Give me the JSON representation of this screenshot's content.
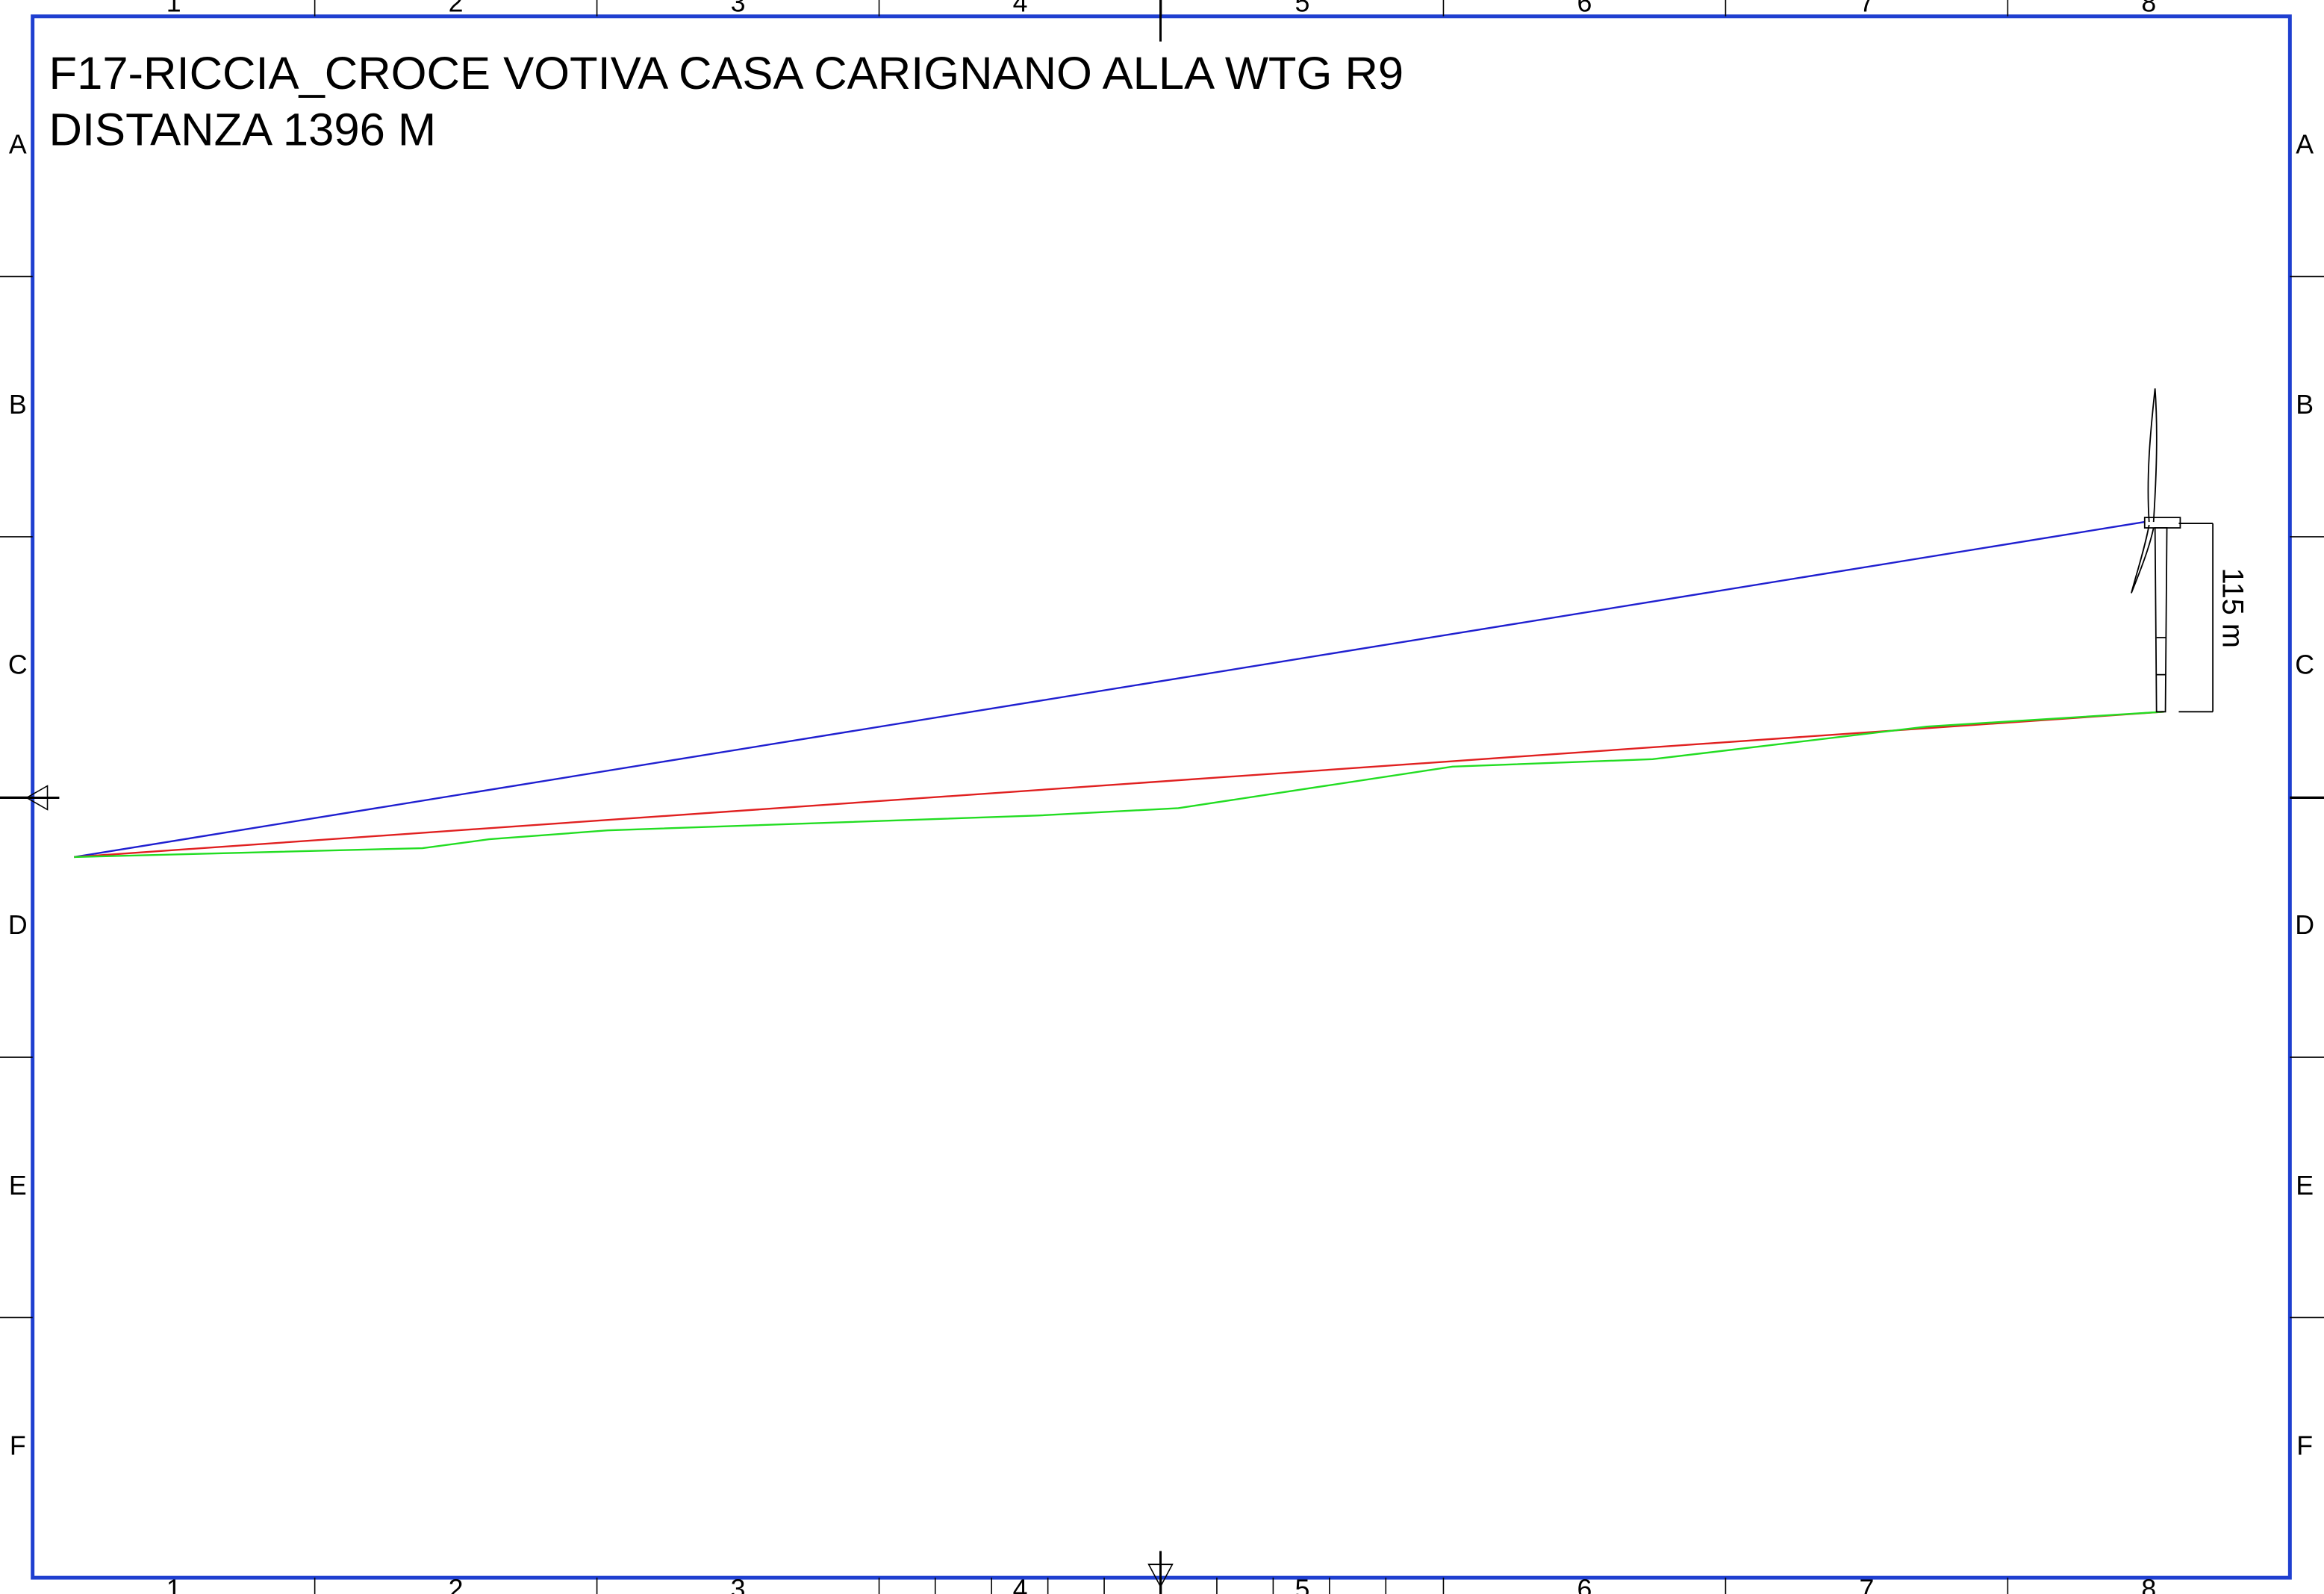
{
  "title": [
    "F17-RICCIA_CROCE VOTIVA CASA CARIGNANO ALLA WTG R9",
    "DISTANZA 1396 M"
  ],
  "dimension_label": "115 m",
  "column_labels": [
    "1",
    "2",
    "3",
    "4",
    "5",
    "6",
    "7",
    "8"
  ],
  "row_labels": [
    "A",
    "B",
    "C",
    "D",
    "E",
    "F"
  ]
}
